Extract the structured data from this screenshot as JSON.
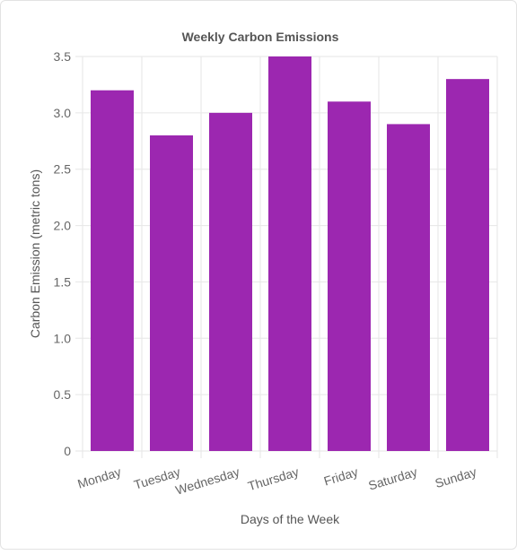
{
  "chart_data": {
    "type": "bar",
    "title": "Weekly Carbon Emissions",
    "xlabel": "Days of the Week",
    "ylabel": "Carbon Emission (metric tons)",
    "categories": [
      "Monday",
      "Tuesday",
      "Wednesday",
      "Thursday",
      "Friday",
      "Saturday",
      "Sunday"
    ],
    "values": [
      3.2,
      2.8,
      3.0,
      3.5,
      3.1,
      2.9,
      3.3
    ],
    "ylim": [
      0,
      3.5
    ],
    "yticks": [
      "0",
      "0.5",
      "1.0",
      "1.5",
      "2.0",
      "2.5",
      "3.0",
      "3.5"
    ],
    "grid": true,
    "bar_color": "#9c27b0"
  }
}
